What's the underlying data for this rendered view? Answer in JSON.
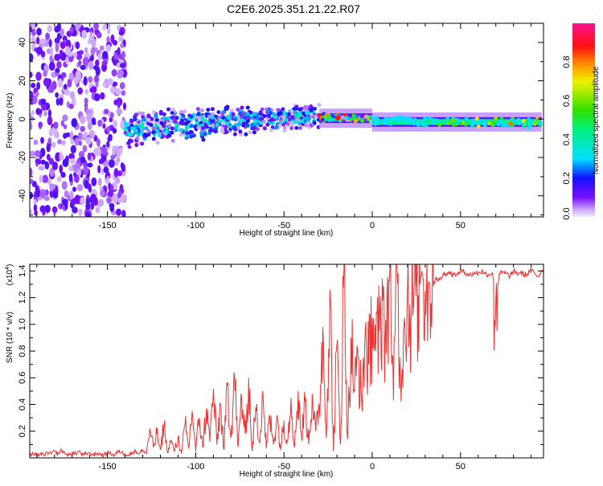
{
  "title": "C2E6.2025.351.21.22.R07",
  "chart_data": [
    {
      "type": "heatmap",
      "title": "C2E6.2025.351.21.22.R07",
      "xlabel": "Height of straight line (km)",
      "ylabel": "Frequency (Hz)",
      "xlim": [
        -194,
        97
      ],
      "ylim": [
        -51,
        50
      ],
      "xticks": [
        -150,
        -100,
        -50,
        0,
        50
      ],
      "yticks": [
        -40,
        -20,
        0,
        20,
        40
      ],
      "colorbar": {
        "label": "Normalized spectral amplitude",
        "range": [
          0,
          1
        ],
        "ticks": [
          0.0,
          0.2,
          0.4,
          0.6,
          0.8
        ],
        "tick_labels": [
          "0.0",
          "0.2",
          "0.4",
          "0.6",
          "0.8"
        ]
      },
      "regions": [
        {
          "x": [
            -194,
            -140
          ],
          "freq_center": [
            0,
            0
          ],
          "freq_spread": [
            50,
            50
          ],
          "amp_max": 0.15,
          "density": 520
        },
        {
          "x": [
            -140,
            -30
          ],
          "freq_center": [
            -5,
            2
          ],
          "freq_spread": [
            10,
            7
          ],
          "amp_max": 0.45,
          "density": 650
        },
        {
          "x": [
            -30,
            0
          ],
          "freq_center": [
            1,
            0
          ],
          "freq_spread": [
            2,
            2
          ],
          "amp_max": 0.92,
          "density": 90
        },
        {
          "x": [
            0,
            96
          ],
          "freq_center": [
            -1,
            -2
          ],
          "freq_spread": [
            2.5,
            2.5
          ],
          "amp_max": 0.95,
          "density": 140
        }
      ]
    },
    {
      "type": "line",
      "xlabel": "Height of straight line (km)",
      "ylabel": "SNR (10 * v/v)",
      "yscale_label": "(x10",
      "yscale_exp": "4",
      "yscale_close": ")",
      "xlim": [
        -194,
        97
      ],
      "ylim": [
        0,
        1.45
      ],
      "xticks": [
        -150,
        -100,
        -50,
        0,
        50
      ],
      "yticks": [
        0.2,
        0.4,
        0.6,
        0.8,
        1.0,
        1.2,
        1.4
      ],
      "ytick_labels": [
        "0.2",
        "0.4",
        "0.6",
        "0.8",
        "1.0",
        "1.2",
        "1.4"
      ],
      "color": "#f03030",
      "x_start": -194,
      "x_step": 2,
      "values": [
        0.02,
        0.03,
        0.02,
        0.03,
        0.02,
        0.04,
        0.03,
        0.05,
        0.03,
        0.06,
        0.03,
        0.02,
        0.04,
        0.03,
        0.05,
        0.02,
        0.03,
        0.04,
        0.02,
        0.03,
        0.03,
        0.02,
        0.04,
        0.03,
        0.02,
        0.05,
        0.04,
        0.03,
        0.02,
        0.04,
        0.05,
        0.03,
        0.06,
        0.03,
        0.22,
        0.08,
        0.18,
        0.06,
        0.24,
        0.04,
        0.12,
        0.05,
        0.15,
        0.03,
        0.25,
        0.07,
        0.35,
        0.05,
        0.3,
        0.08,
        0.37,
        0.12,
        0.52,
        0.1,
        0.4,
        0.06,
        0.55,
        0.15,
        0.61,
        0.08,
        0.45,
        0.18,
        0.6,
        0.05,
        0.38,
        0.12,
        0.5,
        0.07,
        0.3,
        0.1,
        0.32,
        0.06,
        0.28,
        0.12,
        0.45,
        0.08,
        0.5,
        0.15,
        0.42,
        0.1,
        0.48,
        0.2,
        0.38,
        0.98,
        0.15,
        1.26,
        0.05,
        0.85,
        0.1,
        1.45,
        0.14,
        0.9,
        0.5,
        0.75,
        0.42,
        0.95,
        0.7,
        1.05,
        0.8,
        0.95,
        1.18,
        0.78,
        1.43,
        0.43,
        1.45,
        0.62,
        1.0,
        1.28,
        1.05,
        1.3,
        1.22,
        1.4,
        1.25,
        1.32,
        1.28,
        1.35,
        1.33,
        1.37,
        1.38,
        1.39,
        1.37,
        1.38,
        1.4,
        1.39,
        1.38,
        1.37,
        1.39,
        1.38,
        1.4,
        1.38,
        1.37,
        1.39,
        1.18,
        1.38,
        1.39,
        1.38,
        1.36,
        1.4,
        1.38,
        1.39,
        1.37,
        1.38,
        1.41,
        1.38,
        1.36,
        1.4
      ]
    }
  ]
}
